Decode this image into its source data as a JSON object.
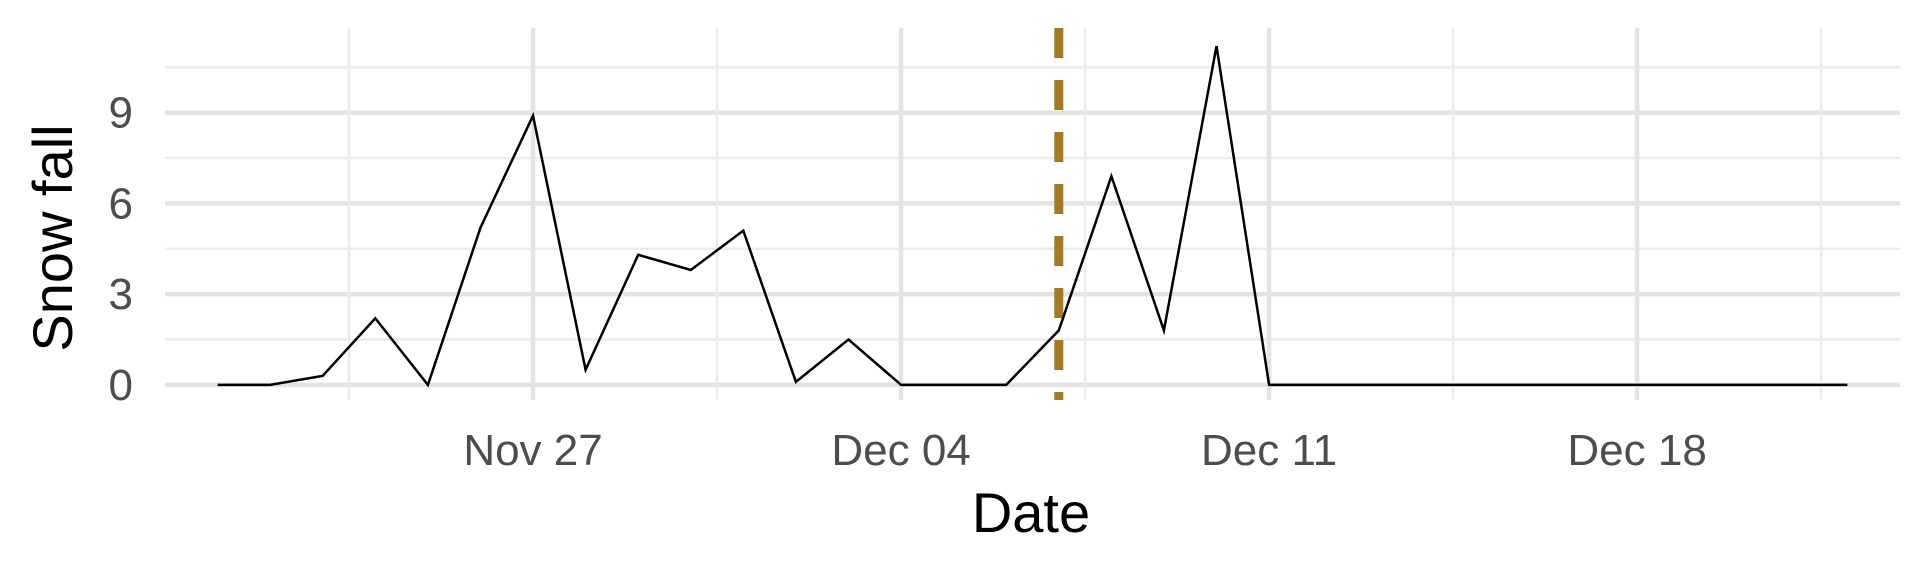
{
  "chart_data": {
    "type": "line",
    "xlabel": "Date",
    "ylabel": "Snow fall",
    "x_ticks": [
      {
        "date": "2023-11-27",
        "label": "Nov 27"
      },
      {
        "date": "2023-12-04",
        "label": "Dec 04"
      },
      {
        "date": "2023-12-11",
        "label": "Dec 11"
      },
      {
        "date": "2023-12-18",
        "label": "Dec 18"
      }
    ],
    "y_ticks": [
      0,
      3,
      6,
      9
    ],
    "xlim": [
      "2023-11-20",
      "2023-12-23"
    ],
    "ylim": [
      -0.5,
      11.8
    ],
    "grid": true,
    "legend": "none",
    "colors": {
      "line": "#000000",
      "reference_line": "#a37b27",
      "grid": "#e3e3e3"
    },
    "series": [
      {
        "x": [
          "2023-11-21",
          "2023-11-22",
          "2023-11-23",
          "2023-11-24",
          "2023-11-25",
          "2023-11-26",
          "2023-11-27",
          "2023-11-28",
          "2023-11-29",
          "2023-11-30",
          "2023-12-01",
          "2023-12-02",
          "2023-12-03",
          "2023-12-04",
          "2023-12-05",
          "2023-12-06",
          "2023-12-07",
          "2023-12-08",
          "2023-12-09",
          "2023-12-10",
          "2023-12-11",
          "2023-12-12",
          "2023-12-13",
          "2023-12-14",
          "2023-12-15",
          "2023-12-16",
          "2023-12-17",
          "2023-12-18",
          "2023-12-19",
          "2023-12-20",
          "2023-12-21",
          "2023-12-22"
        ],
        "y": [
          0,
          0,
          0.3,
          2.2,
          0,
          5.2,
          8.9,
          0.5,
          4.3,
          3.8,
          5.1,
          0.1,
          1.5,
          0,
          0,
          0,
          1.8,
          6.9,
          1.8,
          11.2,
          0,
          0,
          0,
          0,
          0,
          0,
          0,
          0,
          0,
          0,
          0,
          0
        ]
      }
    ],
    "reference_line": {
      "date": "2023-12-07"
    }
  }
}
